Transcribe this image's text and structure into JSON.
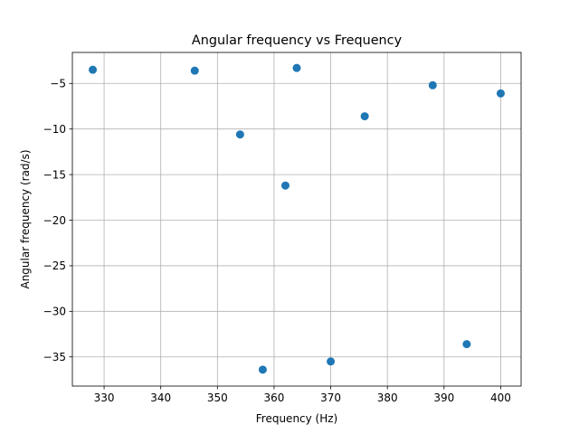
{
  "chart_data": {
    "type": "scatter",
    "title": "Angular frequency vs Frequency",
    "xlabel": "Frequency (Hz)",
    "ylabel": "Angular frequency (rad/s)",
    "xlim": [
      324.4,
      403.6
    ],
    "ylim": [
      -38.2,
      -1.6
    ],
    "xticks": [
      330,
      340,
      350,
      360,
      370,
      380,
      390,
      400
    ],
    "yticks": [
      -35,
      -30,
      -25,
      -20,
      -15,
      -10,
      -5
    ],
    "xtick_labels": [
      "330",
      "340",
      "350",
      "360",
      "370",
      "380",
      "390",
      "400"
    ],
    "ytick_labels": [
      "−35",
      "−30",
      "−25",
      "−20",
      "−15",
      "−10",
      "−5"
    ],
    "grid": true,
    "marker_color": "#1f77b4",
    "points": [
      {
        "x": 328,
        "y": -3.5
      },
      {
        "x": 346,
        "y": -3.6
      },
      {
        "x": 354,
        "y": -10.6
      },
      {
        "x": 358,
        "y": -36.4
      },
      {
        "x": 362,
        "y": -16.2
      },
      {
        "x": 364,
        "y": -3.3
      },
      {
        "x": 370,
        "y": -35.5
      },
      {
        "x": 376,
        "y": -8.6
      },
      {
        "x": 388,
        "y": -5.2
      },
      {
        "x": 394,
        "y": -33.6
      },
      {
        "x": 400,
        "y": -6.1
      }
    ]
  }
}
